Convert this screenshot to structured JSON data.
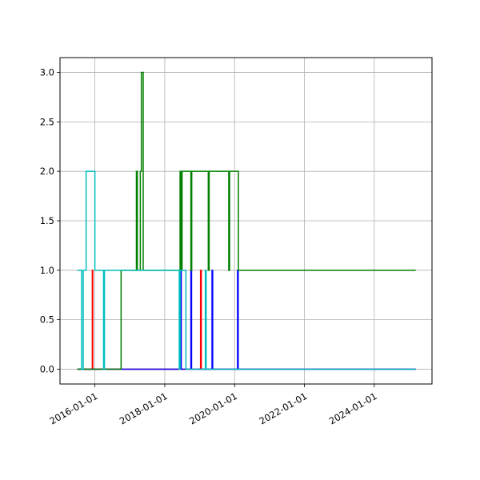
{
  "chart_data": {
    "type": "line",
    "step": true,
    "title": "",
    "xlabel": "",
    "ylabel": "",
    "grid": true,
    "x_axis_type": "date",
    "xlim": [
      "2015-01-01",
      "2025-08-27"
    ],
    "ylim": [
      -0.15,
      3.15
    ],
    "x_ticks": [
      "2016-01-01",
      "2018-01-01",
      "2020-01-01",
      "2022-01-01",
      "2024-01-01"
    ],
    "x_tick_labels": [
      "2016-01-01",
      "2018-01-01",
      "2020-01-01",
      "2022-01-01",
      "2024-01-01"
    ],
    "y_ticks": [
      0.0,
      0.5,
      1.0,
      1.5,
      2.0,
      2.5,
      3.0
    ],
    "y_tick_labels": [
      "0.0",
      "0.5",
      "1.0",
      "1.5",
      "2.0",
      "2.5",
      "3.0"
    ],
    "colors": {
      "grid": "#b0b0b0",
      "axes": "#000000",
      "red": "#ff0000",
      "blue": "#0000ff",
      "green": "#008000",
      "cyan": "#00bfbf"
    },
    "series": [
      {
        "color": "#ff0000",
        "points": [
          [
            "2015-07-01",
            0
          ],
          [
            "2015-12-05",
            0
          ],
          [
            "2015-12-05",
            1
          ],
          [
            "2015-12-10",
            1
          ],
          [
            "2015-12-10",
            0
          ],
          [
            "2019-01-10",
            0
          ],
          [
            "2019-01-10",
            1
          ],
          [
            "2019-01-18",
            1
          ],
          [
            "2019-01-18",
            0
          ],
          [
            "2025-03-10",
            0
          ]
        ]
      },
      {
        "color": "#0000ff",
        "points": [
          [
            "2015-07-01",
            0
          ],
          [
            "2018-06-15",
            0
          ],
          [
            "2018-06-15",
            1
          ],
          [
            "2018-06-22",
            1
          ],
          [
            "2018-06-22",
            0
          ],
          [
            "2018-10-01",
            0
          ],
          [
            "2018-10-01",
            1
          ],
          [
            "2018-10-08",
            1
          ],
          [
            "2018-10-08",
            0
          ],
          [
            "2019-05-10",
            0
          ],
          [
            "2019-05-10",
            1
          ],
          [
            "2019-05-17",
            1
          ],
          [
            "2019-05-17",
            0
          ],
          [
            "2020-02-01",
            0
          ],
          [
            "2020-02-01",
            1
          ],
          [
            "2020-02-08",
            1
          ],
          [
            "2020-02-08",
            0
          ],
          [
            "2025-03-10",
            0
          ]
        ]
      },
      {
        "color": "#008000",
        "points": [
          [
            "2015-07-01",
            0
          ],
          [
            "2016-10-01",
            0
          ],
          [
            "2016-10-01",
            1
          ],
          [
            "2017-03-10",
            1
          ],
          [
            "2017-03-10",
            2
          ],
          [
            "2017-03-20",
            2
          ],
          [
            "2017-03-20",
            1
          ],
          [
            "2017-04-20",
            1
          ],
          [
            "2017-04-20",
            2
          ],
          [
            "2017-05-01",
            2
          ],
          [
            "2017-05-01",
            3
          ],
          [
            "2017-05-20",
            3
          ],
          [
            "2017-05-20",
            1
          ],
          [
            "2018-06-10",
            1
          ],
          [
            "2018-06-10",
            2
          ],
          [
            "2018-06-20",
            2
          ],
          [
            "2018-06-20",
            1
          ],
          [
            "2018-07-01",
            1
          ],
          [
            "2018-07-01",
            2
          ],
          [
            "2018-10-01",
            2
          ],
          [
            "2018-10-01",
            1
          ],
          [
            "2018-10-10",
            1
          ],
          [
            "2018-10-10",
            2
          ],
          [
            "2019-04-01",
            2
          ],
          [
            "2019-04-01",
            1
          ],
          [
            "2019-04-10",
            1
          ],
          [
            "2019-04-10",
            2
          ],
          [
            "2019-11-01",
            2
          ],
          [
            "2019-11-01",
            1
          ],
          [
            "2019-11-10",
            1
          ],
          [
            "2019-11-10",
            2
          ],
          [
            "2020-02-10",
            2
          ],
          [
            "2020-02-10",
            1
          ],
          [
            "2025-03-10",
            1
          ]
        ]
      },
      {
        "color": "#00bfbf",
        "points": [
          [
            "2015-07-01",
            1
          ],
          [
            "2015-08-15",
            1
          ],
          [
            "2015-08-15",
            0
          ],
          [
            "2015-09-01",
            0
          ],
          [
            "2015-09-01",
            1
          ],
          [
            "2015-10-01",
            1
          ],
          [
            "2015-10-01",
            2
          ],
          [
            "2016-01-01",
            2
          ],
          [
            "2016-01-01",
            1
          ],
          [
            "2016-04-01",
            1
          ],
          [
            "2016-04-01",
            0
          ],
          [
            "2016-04-10",
            0
          ],
          [
            "2016-04-10",
            1
          ],
          [
            "2018-06-01",
            1
          ],
          [
            "2018-06-01",
            0
          ],
          [
            "2018-06-10",
            0
          ],
          [
            "2018-06-10",
            1
          ],
          [
            "2018-08-10",
            1
          ],
          [
            "2018-08-10",
            0
          ],
          [
            "2019-03-01",
            0
          ],
          [
            "2019-03-01",
            1
          ],
          [
            "2019-03-10",
            1
          ],
          [
            "2019-03-10",
            0
          ],
          [
            "2025-03-10",
            0
          ]
        ]
      }
    ]
  }
}
